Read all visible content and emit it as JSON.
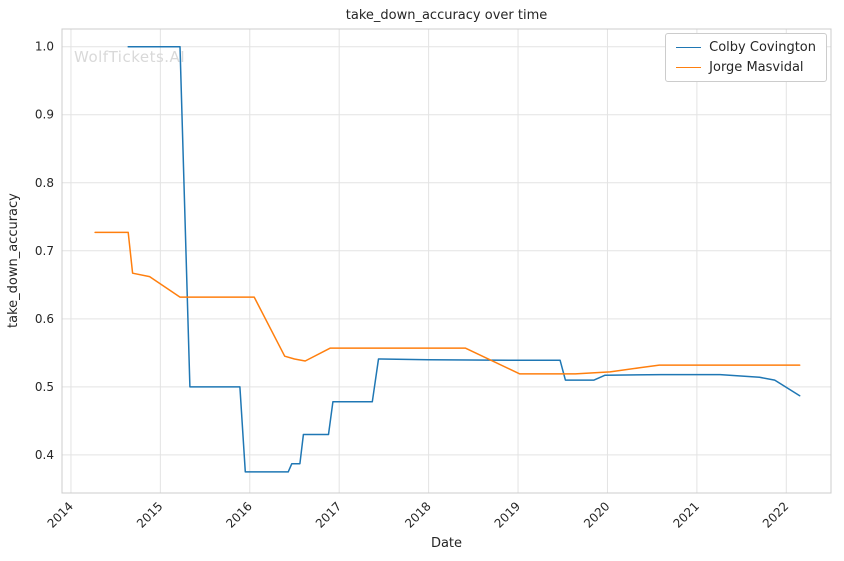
{
  "watermark": {
    "text": "WolfTickets.AI",
    "color": "#d9d9d9"
  },
  "chart_data": {
    "type": "line",
    "title": "take_down_accuracy over time",
    "xlabel": "Date",
    "ylabel": "take_down_accuracy",
    "xlim": [
      2013.9,
      2022.5
    ],
    "ylim": [
      0.344,
      1.026
    ],
    "xticks": [
      2014,
      2015,
      2016,
      2017,
      2018,
      2019,
      2020,
      2021,
      2022
    ],
    "yticks": [
      0.4,
      0.5,
      0.6,
      0.7,
      0.8,
      0.9,
      1.0
    ],
    "grid": true,
    "legend_position": "upper right",
    "colors": {
      "grid": "#e3e3e3",
      "spine": "#cccccc",
      "text": "#262626"
    },
    "series": [
      {
        "name": "Colby Covington",
        "color": "#1f77b4",
        "x": [
          2014.64,
          2015.22,
          2015.33,
          2015.89,
          2015.95,
          2016.43,
          2016.47,
          2016.56,
          2016.6,
          2016.88,
          2016.93,
          2017.37,
          2017.44,
          2018.0,
          2019.0,
          2019.47,
          2019.53,
          2019.85,
          2019.97,
          2020.6,
          2021.26,
          2021.7,
          2021.87,
          2022.15
        ],
        "y": [
          1.0,
          1.0,
          0.5,
          0.5,
          0.375,
          0.375,
          0.387,
          0.387,
          0.43,
          0.43,
          0.478,
          0.478,
          0.541,
          0.54,
          0.539,
          0.539,
          0.51,
          0.51,
          0.517,
          0.518,
          0.518,
          0.514,
          0.51,
          0.487
        ]
      },
      {
        "name": "Jorge Masvidal",
        "color": "#ff7f0e",
        "x": [
          2014.27,
          2014.64,
          2014.69,
          2014.88,
          2015.22,
          2016.05,
          2016.39,
          2016.5,
          2016.62,
          2016.9,
          2017.5,
          2018.41,
          2019.02,
          2019.64,
          2020.03,
          2020.36,
          2020.58,
          2021.2,
          2022.15
        ],
        "y": [
          0.727,
          0.727,
          0.667,
          0.662,
          0.632,
          0.632,
          0.545,
          0.541,
          0.538,
          0.557,
          0.557,
          0.557,
          0.519,
          0.519,
          0.522,
          0.528,
          0.532,
          0.532,
          0.532
        ]
      }
    ]
  }
}
